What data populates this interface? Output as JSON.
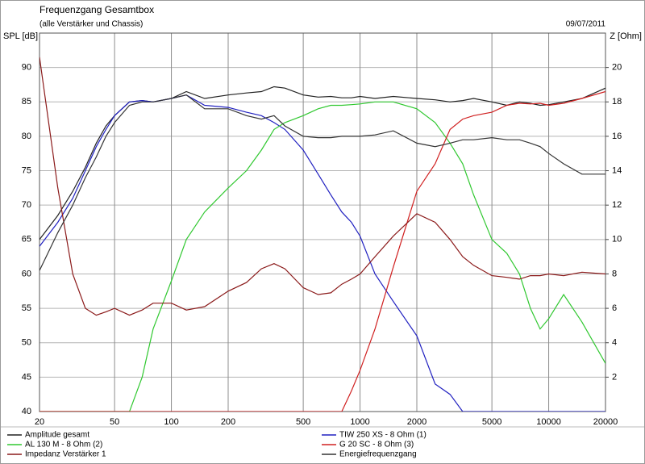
{
  "chart_data": {
    "type": "line",
    "title": "Frequenzgang Gesamtbox",
    "subtitle": "(alle Verstärker und Chassis)",
    "date": "09/07/2011",
    "y_label": "SPL [dB]",
    "y2_label": "Z [Ohm]",
    "x_log": true,
    "grid": true,
    "x": [
      20,
      25,
      30,
      35,
      40,
      45,
      50,
      60,
      70,
      80,
      100,
      120,
      150,
      200,
      250,
      300,
      350,
      400,
      500,
      600,
      700,
      800,
      900,
      1000,
      1200,
      1500,
      2000,
      2500,
      3000,
      3500,
      4000,
      5000,
      6000,
      7000,
      8000,
      9000,
      10000,
      12000,
      15000,
      20000
    ],
    "xlim": [
      20,
      20000
    ],
    "xticks": [
      20,
      50,
      100,
      200,
      500,
      1000,
      2000,
      5000,
      10000,
      20000
    ],
    "ylim": [
      40,
      95
    ],
    "yticks": [
      40,
      45,
      50,
      55,
      60,
      65,
      70,
      75,
      80,
      85,
      90
    ],
    "y2lim": [
      0,
      22
    ],
    "y2ticks": [
      2,
      4,
      6,
      8,
      10,
      12,
      14,
      16,
      18,
      20
    ],
    "series": [
      {
        "name": "Amplitude gesamt",
        "color": "#222222",
        "values": [
          65,
          68.5,
          72,
          75.5,
          79,
          81.5,
          83,
          85,
          85.2,
          85,
          85.5,
          86.5,
          85.5,
          86,
          86.3,
          86.5,
          87.2,
          87,
          86,
          85.7,
          85.8,
          85.6,
          85.6,
          85.8,
          85.5,
          85.8,
          85.5,
          85.3,
          85,
          85.2,
          85.5,
          85,
          84.5,
          85,
          84.8,
          84.5,
          84.6,
          85,
          85.5,
          87
        ]
      },
      {
        "name": "TIW 250 XS - 8 Ohm (1)",
        "color": "#2020c0",
        "values": [
          64,
          67.5,
          71,
          75,
          78.5,
          81,
          83,
          85,
          85.2,
          85,
          85.5,
          86,
          84.5,
          84.2,
          83.5,
          83,
          82,
          81,
          78,
          74.5,
          71.5,
          69,
          67.5,
          65.5,
          60,
          56,
          51,
          44,
          42.5,
          40,
          40,
          40,
          40,
          40,
          40,
          40,
          40,
          40,
          40,
          40
        ]
      },
      {
        "name": "AL 130 M - 8 Ohm (2)",
        "color": "#30c830",
        "values": [
          40,
          40,
          40,
          40,
          40,
          40,
          40,
          40,
          45,
          52,
          59,
          65,
          69,
          72.5,
          75,
          78,
          81,
          82,
          83,
          84,
          84.5,
          84.5,
          84.6,
          84.7,
          85,
          85,
          84,
          82,
          79,
          76,
          71.5,
          65,
          63,
          60,
          55,
          52,
          53.5,
          57,
          53,
          47
        ]
      },
      {
        "name": "G 20 SC - 8 Ohm (3)",
        "color": "#d02020",
        "values": [
          40,
          40,
          40,
          40,
          40,
          40,
          40,
          40,
          40,
          40,
          40,
          40,
          40,
          40,
          40,
          40,
          40,
          40,
          40,
          40,
          40,
          40,
          43,
          46,
          52,
          61,
          72,
          76,
          81,
          82.5,
          83,
          83.5,
          84.5,
          84.8,
          84.7,
          84.8,
          84.5,
          84.8,
          85.5,
          86.5
        ]
      },
      {
        "name": "Impedanz Verstärker 1",
        "color": "#8b1a1a",
        "axis": "y2",
        "values": [
          20.6,
          13,
          8,
          6,
          5.6,
          5.8,
          6,
          5.6,
          5.9,
          6.3,
          6.3,
          5.9,
          6.1,
          7,
          7.5,
          8.3,
          8.6,
          8.3,
          7.2,
          6.8,
          6.9,
          7.4,
          7.7,
          8,
          9,
          10.2,
          11.5,
          11,
          10,
          9,
          8.5,
          7.9,
          7.8,
          7.7,
          7.9,
          7.9,
          8,
          7.9,
          8.1,
          8
        ]
      },
      {
        "name": "Energiefrequenzgang",
        "color": "#333333",
        "values": [
          60.5,
          66,
          70,
          74,
          77,
          80,
          82,
          84.5,
          85,
          85,
          85.5,
          86,
          84,
          84,
          83,
          82.5,
          83,
          81.5,
          80,
          79.8,
          79.8,
          80,
          80,
          80,
          80.2,
          80.8,
          79,
          78.5,
          79,
          79.5,
          79.5,
          79.8,
          79.5,
          79.5,
          79,
          78.5,
          77.5,
          76,
          74.5,
          74.5
        ]
      }
    ]
  }
}
